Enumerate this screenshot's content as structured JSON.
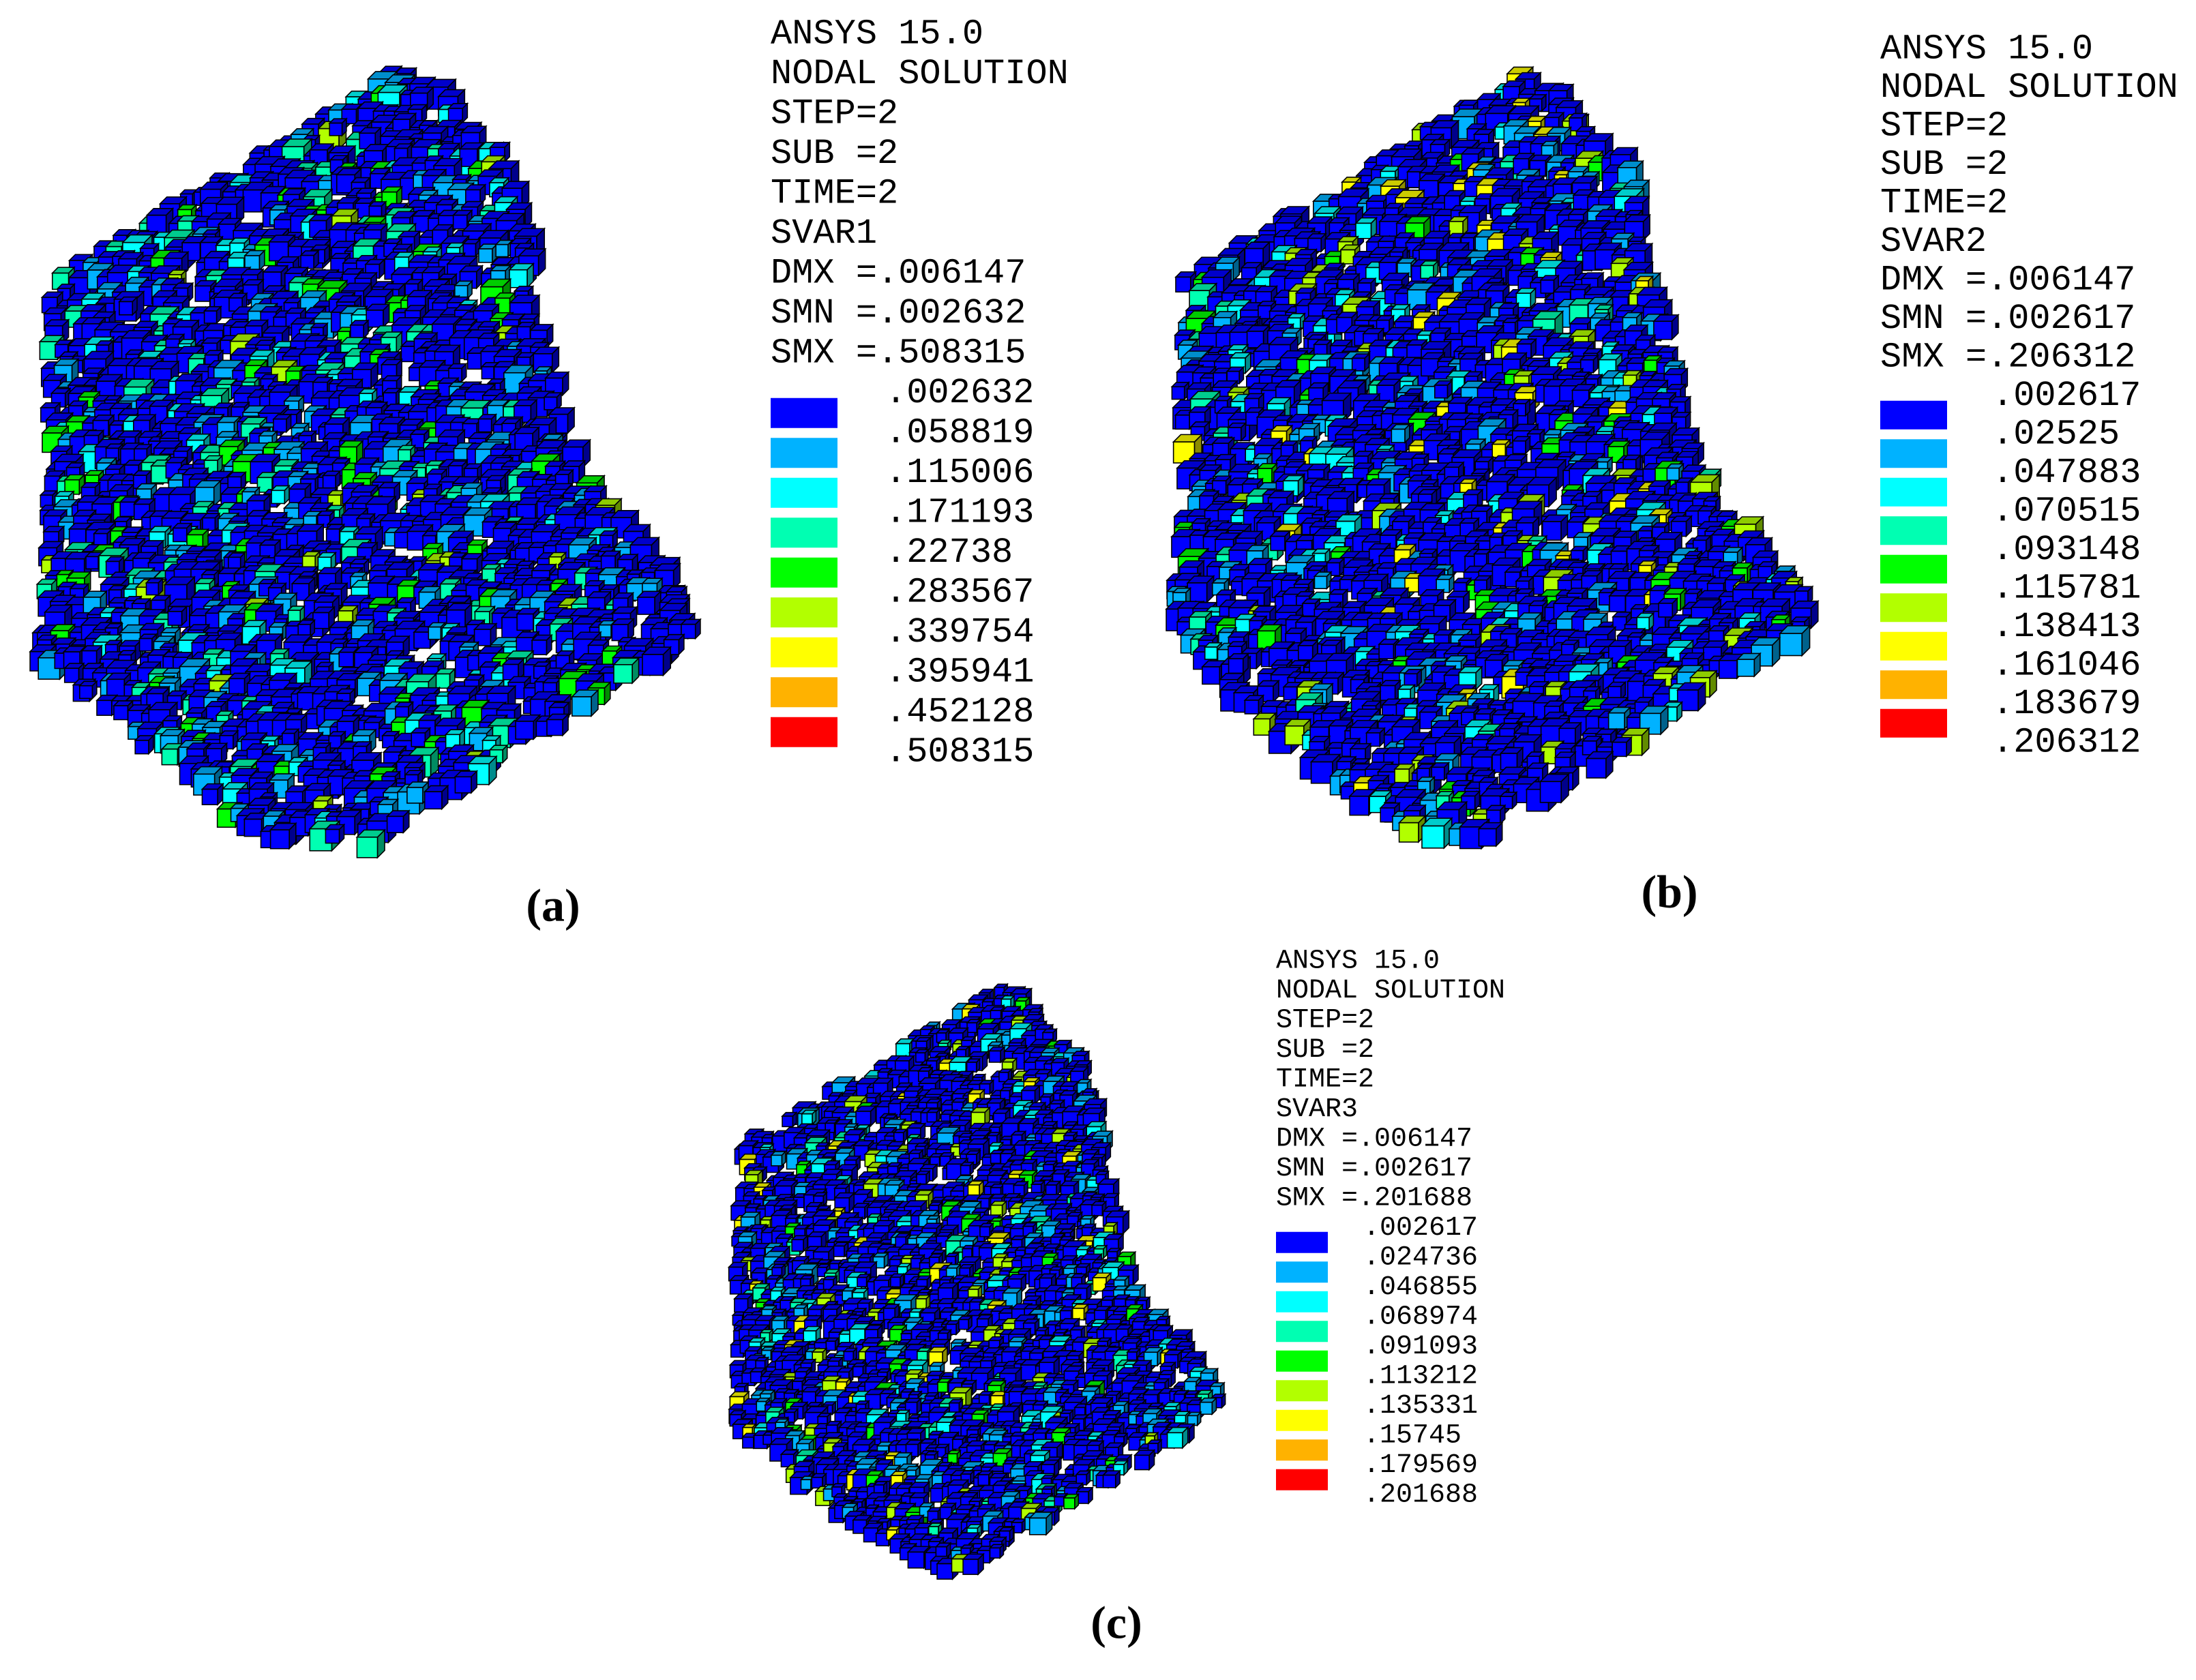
{
  "legend_colors": [
    "#0000ff",
    "#00b2ff",
    "#00ffff",
    "#00ffb2",
    "#00ff00",
    "#b2ff00",
    "#ffff00",
    "#ffb200",
    "#ff0000"
  ],
  "panels": [
    {
      "header": [
        "ANSYS 15.0",
        "NODAL SOLUTION",
        "STEP=2",
        "SUB =2",
        "TIME=2",
        "SVAR1",
        "DMX =.006147",
        "SMN =.002632",
        "SMX =.508315"
      ],
      "levels": [
        ".002632",
        ".058819",
        ".115006",
        ".171193",
        ".22738",
        ".283567",
        ".339754",
        ".395941",
        ".452128",
        ".508315"
      ],
      "label": "(a)"
    },
    {
      "header": [
        "ANSYS 15.0",
        "NODAL SOLUTION",
        "STEP=2",
        "SUB =2",
        "TIME=2",
        "SVAR2",
        "DMX =.006147",
        "SMN =.002617",
        "SMX =.206312"
      ],
      "levels": [
        ".002617",
        ".02525",
        ".047883",
        ".070515",
        ".093148",
        ".115781",
        ".138413",
        ".161046",
        ".183679",
        ".206312"
      ],
      "label": "(b)"
    },
    {
      "header": [
        "ANSYS 15.0",
        "NODAL SOLUTION",
        "STEP=2",
        "SUB =2",
        "TIME=2",
        "SVAR3",
        "DMX =.006147",
        "SMN =.002617",
        "SMX =.201688"
      ],
      "levels": [
        ".002617",
        ".024736",
        ".046855",
        ".068974",
        ".091093",
        ".113212",
        ".135331",
        ".15745",
        ".179569",
        ".201688"
      ],
      "label": "(c)"
    }
  ]
}
